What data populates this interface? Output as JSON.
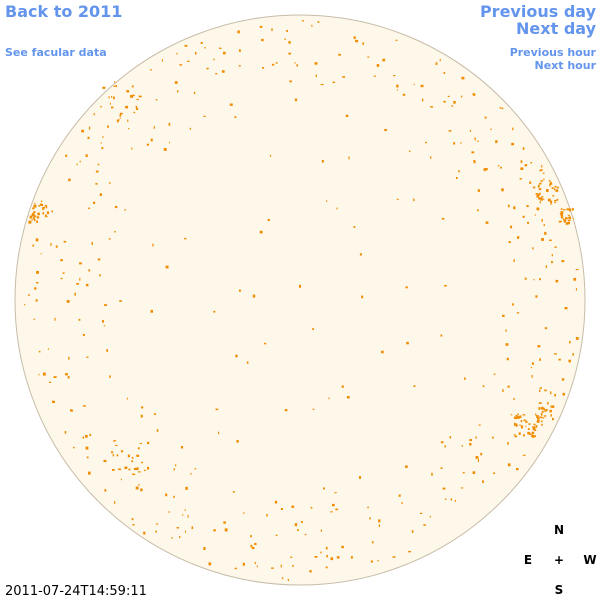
{
  "navigation": {
    "back": "Back to 2011",
    "facular": "See facular data",
    "previous_day": "Previous day",
    "next_day": "Next day",
    "previous_hour": "Previous hour",
    "next_hour": "Next hour"
  },
  "timestamp": "2011-07-24T14:59:11",
  "compass": {
    "north": "N",
    "east": "E",
    "center": "+",
    "west": "W",
    "south": "S"
  }
}
